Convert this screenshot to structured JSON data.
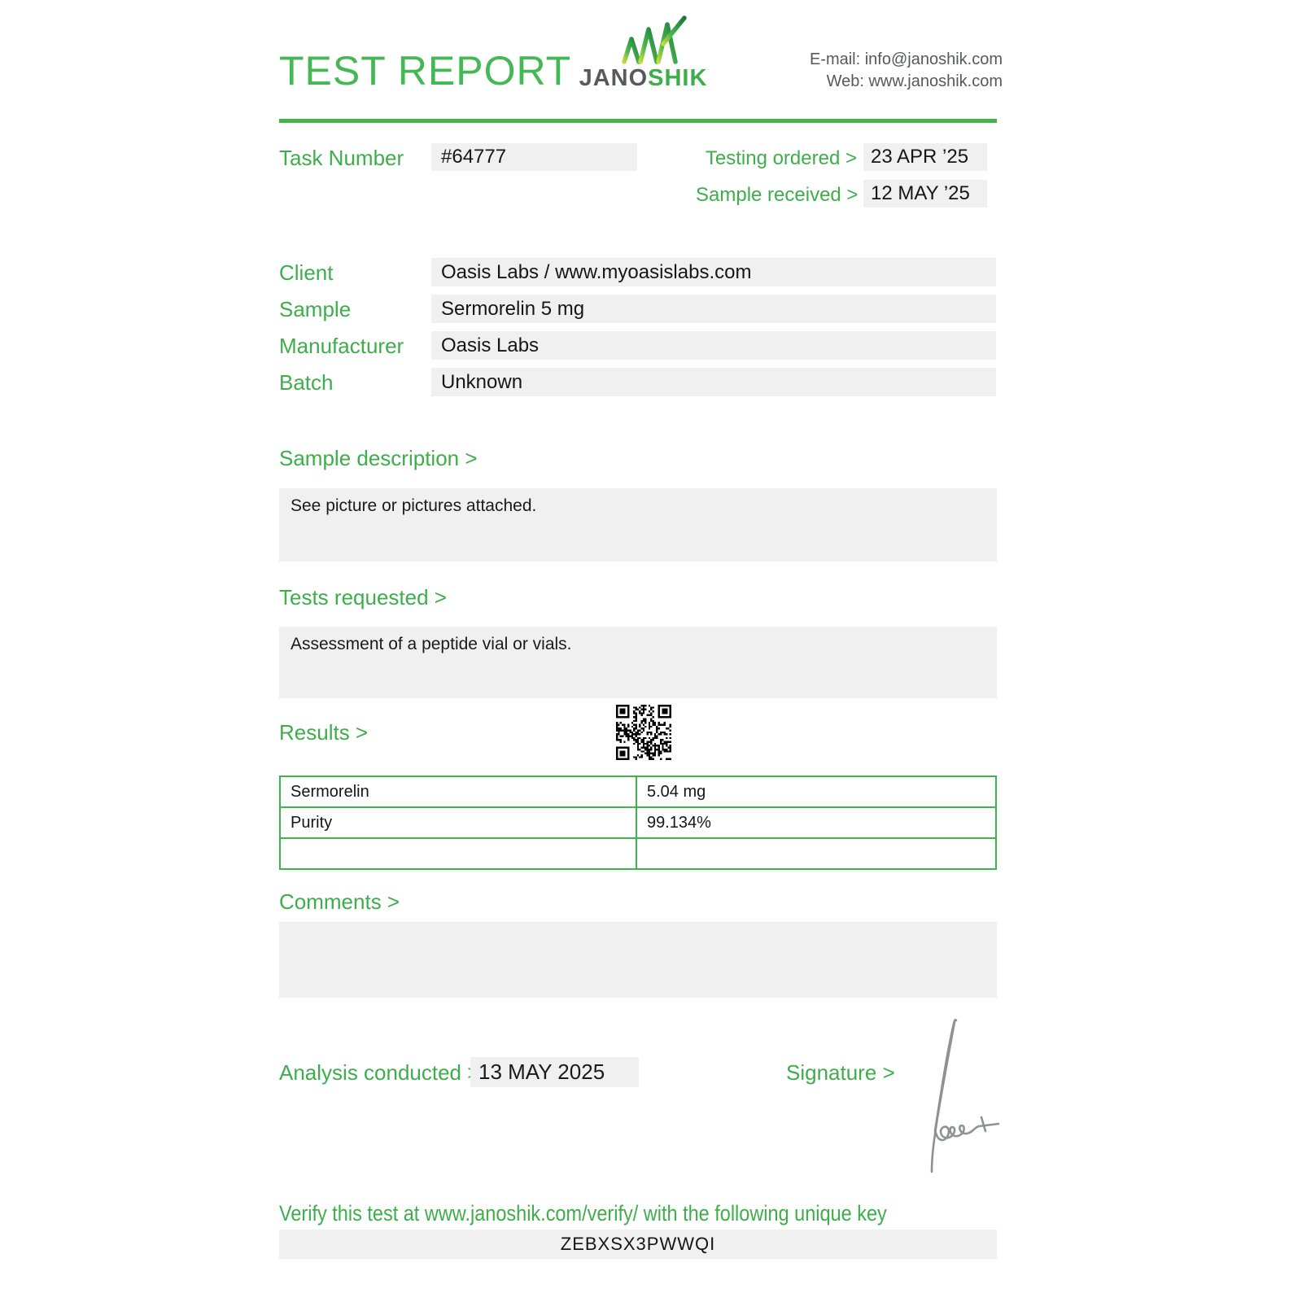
{
  "header": {
    "title": "TEST REPORT",
    "brand": {
      "name_left": "JANO",
      "name_right": "SHIK"
    },
    "contact": {
      "email": "E-mail: info@janoshik.com",
      "web": "Web: www.janoshik.com"
    }
  },
  "meta": {
    "task_number_label": "Task Number",
    "task_number": "#64777",
    "testing_ordered_label": "Testing ordered  >",
    "testing_ordered": "23 APR ’25",
    "sample_received_label": "Sample received >",
    "sample_received": "12 MAY ’25"
  },
  "fields": [
    {
      "label": "Client",
      "value": "Oasis Labs / www.myoasislabs.com"
    },
    {
      "label": "Sample",
      "value": "Sermorelin 5 mg"
    },
    {
      "label": "Manufacturer",
      "value": "Oasis Labs"
    },
    {
      "label": "Batch",
      "value": "Unknown"
    }
  ],
  "sections": {
    "sample_description": {
      "heading": "Sample description >",
      "body": "See picture or pictures attached."
    },
    "tests_requested": {
      "heading": "Tests requested >",
      "body": "Assessment of a peptide vial or vials."
    },
    "results": {
      "heading": "Results >",
      "rows": [
        {
          "name": "Sermorelin",
          "value": "5.04 mg"
        },
        {
          "name": "Purity",
          "value": "99.134%"
        },
        {
          "name": "",
          "value": ""
        }
      ]
    },
    "comments": {
      "heading": "Comments >",
      "body": ""
    }
  },
  "footer": {
    "analysis_label": "Analysis conducted >",
    "analysis_date": "13 MAY 2025",
    "signature_label": "Signature >",
    "verify_text": "Verify this test at www.janoshik.com/verify/ with the following unique key",
    "verify_key": "ZEBXSX3PWWQI"
  },
  "colors": {
    "brand_green": "#3eae4b",
    "table_border_green": "#3cb54a",
    "dark_gray": "#58595b",
    "box_gray": "#f0f0f0",
    "text": "#161616"
  }
}
